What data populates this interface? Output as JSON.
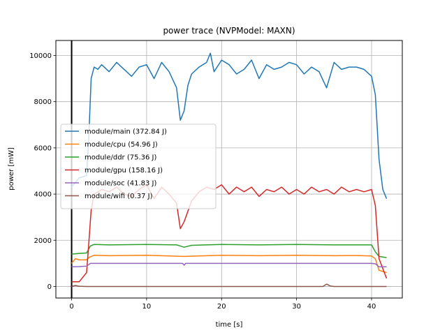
{
  "chart_data": {
    "type": "line",
    "title": "power trace (NVPModel: MAXN)",
    "xlabel": "time [s]",
    "ylabel": "power [mW]",
    "xlim": [
      -2.1,
      44.1
    ],
    "ylim": [
      -500,
      10650
    ],
    "xticks": [
      0,
      10,
      20,
      30,
      40
    ],
    "yticks": [
      0,
      2000,
      4000,
      6000,
      8000,
      10000
    ],
    "grid": true,
    "legend_position": "center-left",
    "marker_line": {
      "x": 0,
      "color": "#000000"
    },
    "series": [
      {
        "name": "module/main (372.84 J)",
        "color": "#1f77b4",
        "x": [
          0,
          1,
          2,
          2.3,
          2.6,
          3,
          3.5,
          4,
          5,
          6,
          7,
          8,
          9,
          10,
          11,
          12,
          13,
          14,
          14.5,
          15,
          15.5,
          16,
          17,
          18,
          18.5,
          19,
          20,
          21,
          22,
          23,
          24,
          25,
          26,
          27,
          28,
          29,
          30,
          31,
          32,
          33,
          34,
          35,
          36,
          37,
          38,
          39,
          40,
          40.5,
          41,
          41.5,
          42
        ],
        "y": [
          4300,
          4700,
          4800,
          6500,
          9000,
          9500,
          9400,
          9600,
          9300,
          9700,
          9400,
          9100,
          9500,
          9600,
          9000,
          9700,
          9300,
          8600,
          7200,
          7600,
          8700,
          9200,
          9500,
          9700,
          10100,
          9300,
          9800,
          9600,
          9200,
          9400,
          9800,
          9000,
          9600,
          9400,
          9500,
          9700,
          9600,
          9200,
          9500,
          9300,
          8600,
          9700,
          9400,
          9500,
          9500,
          9400,
          9100,
          8300,
          5500,
          4200,
          3800
        ]
      },
      {
        "name": "module/cpu (54.96 J)",
        "color": "#ff7f0e",
        "x": [
          0,
          0.5,
          1,
          2,
          2.3,
          2.6,
          3,
          5,
          10,
          15,
          20,
          25,
          30,
          35,
          38,
          40,
          40.5,
          41,
          42
        ],
        "y": [
          1000,
          1200,
          1150,
          1150,
          1250,
          1300,
          1350,
          1330,
          1350,
          1300,
          1350,
          1330,
          1350,
          1330,
          1340,
          1320,
          1200,
          700,
          600
        ]
      },
      {
        "name": "module/ddr (75.36 J)",
        "color": "#2ca02c",
        "x": [
          0,
          1,
          2,
          2.5,
          3,
          5,
          10,
          14,
          15,
          16,
          20,
          25,
          30,
          35,
          40,
          40.5,
          41,
          42
        ],
        "y": [
          1400,
          1430,
          1450,
          1750,
          1820,
          1800,
          1820,
          1800,
          1700,
          1780,
          1820,
          1800,
          1820,
          1800,
          1800,
          1500,
          1300,
          1250
        ]
      },
      {
        "name": "module/gpu (158.16 J)",
        "color": "#d62728",
        "x": [
          0,
          1,
          2,
          2.3,
          2.6,
          3,
          4,
          5,
          6,
          7,
          8,
          9,
          10,
          11,
          12,
          13,
          14,
          14.5,
          15,
          16,
          17,
          18,
          19,
          20,
          21,
          22,
          23,
          24,
          25,
          26,
          27,
          28,
          29,
          30,
          31,
          32,
          33,
          34,
          35,
          36,
          37,
          38,
          39,
          40,
          40.5,
          41,
          42
        ],
        "y": [
          200,
          200,
          600,
          1900,
          3300,
          4000,
          4200,
          4100,
          4300,
          4000,
          3900,
          4200,
          4400,
          3800,
          4300,
          4000,
          3600,
          2500,
          2800,
          3700,
          4100,
          4300,
          4200,
          4400,
          4000,
          4300,
          4100,
          4300,
          3900,
          4200,
          4100,
          4300,
          4000,
          4200,
          4000,
          4300,
          4100,
          4200,
          4000,
          4300,
          4100,
          4200,
          4100,
          4200,
          3500,
          1200,
          350
        ]
      },
      {
        "name": "module/soc (41.83 J)",
        "color": "#9467bd",
        "x": [
          0,
          1,
          2,
          2.5,
          3,
          10,
          14.8,
          15,
          15.2,
          20,
          30,
          40,
          40.5,
          41,
          42
        ],
        "y": [
          850,
          860,
          880,
          1000,
          1000,
          1000,
          1000,
          920,
          1000,
          1000,
          1000,
          1000,
          980,
          850,
          850
        ]
      },
      {
        "name": "module/wifi (0.37 J)",
        "color": "#8c564b",
        "x": [
          0,
          0.5,
          1,
          2,
          5,
          10,
          20,
          30,
          33.5,
          34,
          34.5,
          35,
          40,
          42
        ],
        "y": [
          0,
          40,
          10,
          0,
          0,
          0,
          0,
          0,
          0,
          100,
          20,
          0,
          0,
          0
        ]
      }
    ]
  }
}
